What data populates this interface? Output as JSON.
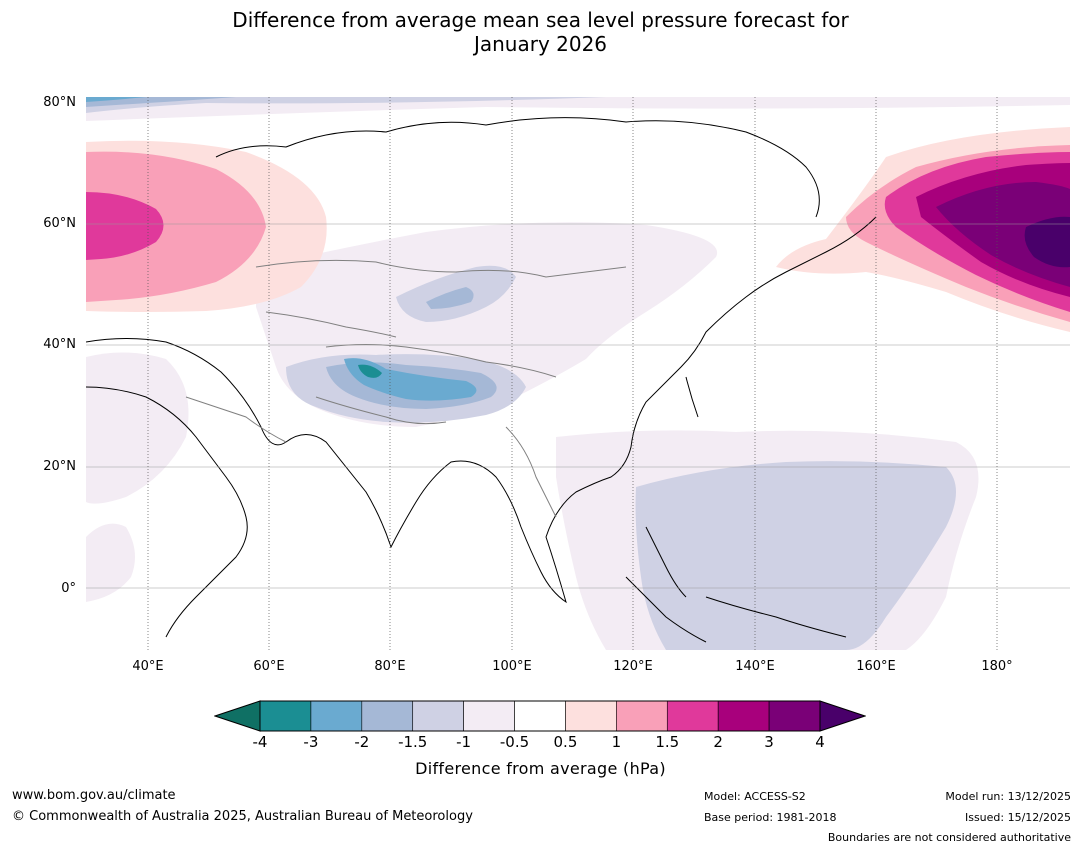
{
  "title_line1": "Difference from average mean sea level pressure forecast for",
  "title_line2": "January 2026",
  "lat_labels": [
    "80°N",
    "60°N",
    "40°N",
    "20°N",
    "0°"
  ],
  "lon_labels": [
    "40°E",
    "60°E",
    "80°E",
    "100°E",
    "120°E",
    "140°E",
    "160°E",
    "180°"
  ],
  "colorbar": {
    "ticks": [
      "-4",
      "-3",
      "-2",
      "-1.5",
      "-1",
      "-0.5",
      "0.5",
      "1",
      "1.5",
      "2",
      "3",
      "4"
    ],
    "colors": [
      "#0f7064",
      "#1b8e93",
      "#6aaad0",
      "#a5b8d6",
      "#cfd1e4",
      "#f3ecf4",
      "#ffffff",
      "#fde0de",
      "#f9a0b8",
      "#e0399b",
      "#a8007c",
      "#7a0077",
      "#49006a"
    ],
    "label": "Difference from average (hPa)"
  },
  "footer": {
    "website": "www.bom.gov.au/climate",
    "copyright": "© Commonwealth of Australia 2025, Australian Bureau of Meteorology",
    "model": "Model: ACCESS-S2",
    "base_period": "Base period: 1981-2018",
    "model_run": "Model run: 13/12/2025",
    "issued": "Issued: 15/12/2025",
    "boundaries": "Boundaries are not considered authoritative"
  }
}
